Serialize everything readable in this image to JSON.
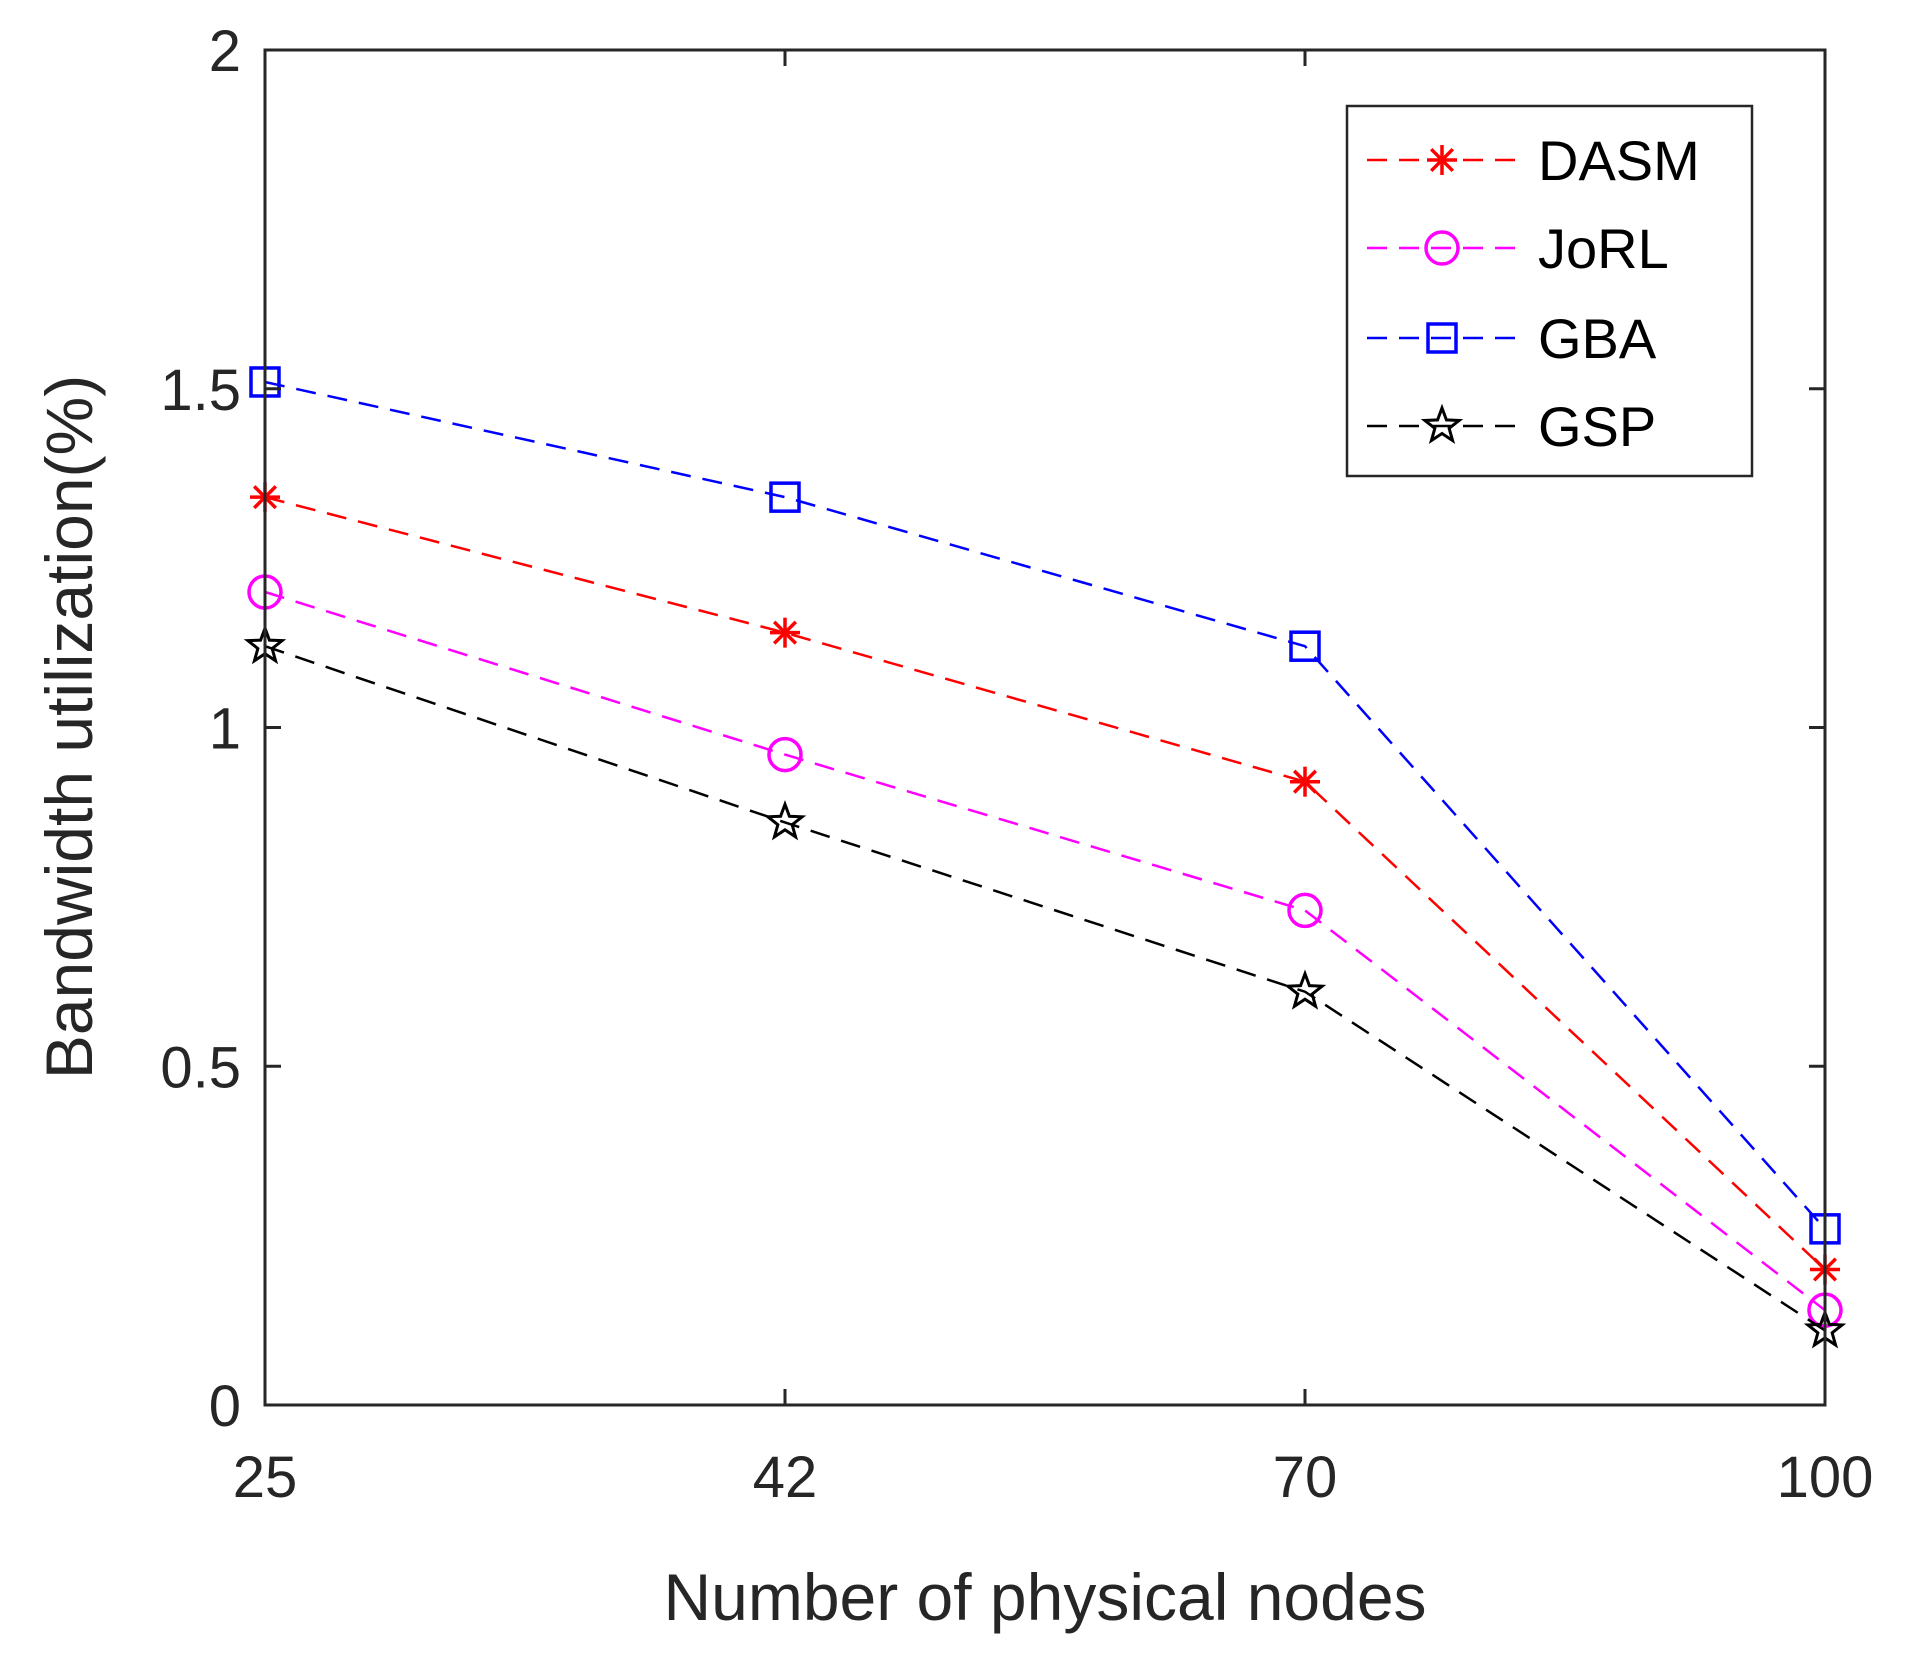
{
  "chart_data": {
    "type": "line",
    "title": "",
    "xlabel": "Number of physical nodes",
    "ylabel": "Bandwidth utilization(%)",
    "categories": [
      "25",
      "42",
      "70",
      "100"
    ],
    "ylim": [
      0,
      2
    ],
    "yticks": [
      "0",
      "0.5",
      "1",
      "1.5",
      "2"
    ],
    "grid": false,
    "legend_position": "top-right",
    "series": [
      {
        "name": "DASM",
        "color": "#ff0000",
        "marker": "asterisk",
        "line_style": "dashed",
        "values": [
          1.34,
          1.14,
          0.92,
          0.2
        ]
      },
      {
        "name": "JoRL",
        "color": "#ff00ff",
        "marker": "circle",
        "line_style": "dashed",
        "values": [
          1.2,
          0.96,
          0.73,
          0.14
        ]
      },
      {
        "name": "GBA",
        "color": "#0000ff",
        "marker": "square",
        "line_style": "dashed",
        "values": [
          1.51,
          1.34,
          1.12,
          0.26
        ]
      },
      {
        "name": "GSP",
        "color": "#000000",
        "marker": "star",
        "line_style": "dashed",
        "values": [
          1.12,
          0.86,
          0.61,
          0.11
        ]
      }
    ]
  }
}
